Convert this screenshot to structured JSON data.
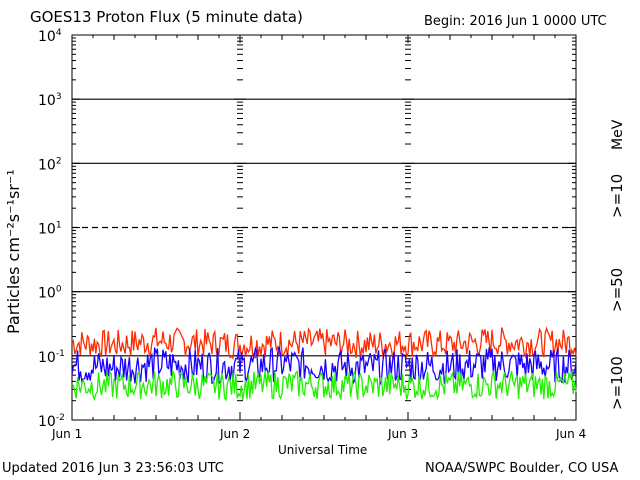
{
  "header": {
    "title": "GOES13 Proton Flux (5 minute data)",
    "begin": "Begin: 2016 Jun 1 0000 UTC"
  },
  "footer": {
    "updated": "Updated 2016 Jun  3 23:56:03 UTC",
    "credit": "NOAA/SWPC Boulder, CO USA"
  },
  "chart_data": {
    "type": "line",
    "title": "GOES13 Proton Flux (5 minute data)",
    "xlabel": "Universal Time",
    "ylabel": "Particles cm⁻²s⁻¹sr⁻¹",
    "y_scale": "log",
    "ylim": [
      0.01,
      10000
    ],
    "y_ticks": [
      "10⁻²",
      "10⁻¹",
      "10⁰",
      "10¹",
      "10²",
      "10³",
      "10⁴"
    ],
    "x_ticks": [
      "Jun 1",
      "Jun 2",
      "Jun 3",
      "Jun 4"
    ],
    "x_range_days": [
      0,
      3
    ],
    "energy_unit": "MeV",
    "series": [
      {
        "name": ">=10",
        "color": "#ff2a00",
        "x_days": [
          0,
          0.25,
          0.5,
          0.75,
          1.0,
          1.25,
          1.5,
          1.75,
          2.0,
          2.25,
          2.5,
          2.75,
          3.0
        ],
        "values": [
          0.16,
          0.15,
          0.17,
          0.16,
          0.15,
          0.16,
          0.16,
          0.15,
          0.16,
          0.15,
          0.17,
          0.16,
          0.16
        ]
      },
      {
        "name": ">=50",
        "color": "#1a00ff",
        "x_days": [
          0,
          0.25,
          0.5,
          0.75,
          1.0,
          1.25,
          1.5,
          1.75,
          2.0,
          2.25,
          2.5,
          2.75,
          3.0
        ],
        "values": [
          0.07,
          0.065,
          0.075,
          0.07,
          0.07,
          0.075,
          0.07,
          0.065,
          0.07,
          0.068,
          0.075,
          0.07,
          0.07
        ]
      },
      {
        "name": ">=100",
        "color": "#22ee00",
        "x_days": [
          0,
          0.25,
          0.5,
          0.75,
          1.0,
          1.25,
          1.5,
          1.75,
          2.0,
          2.25,
          2.5,
          2.75,
          3.0
        ],
        "values": [
          0.035,
          0.034,
          0.036,
          0.035,
          0.034,
          0.036,
          0.035,
          0.034,
          0.035,
          0.034,
          0.036,
          0.035,
          0.035
        ]
      }
    ],
    "reference_lines": [
      {
        "value": 0.1,
        "style": "solid"
      },
      {
        "value": 1,
        "style": "solid"
      },
      {
        "value": 10,
        "style": "dashed"
      },
      {
        "value": 100,
        "style": "solid"
      },
      {
        "value": 1000,
        "style": "solid"
      }
    ],
    "grid": false,
    "legend": "right"
  }
}
